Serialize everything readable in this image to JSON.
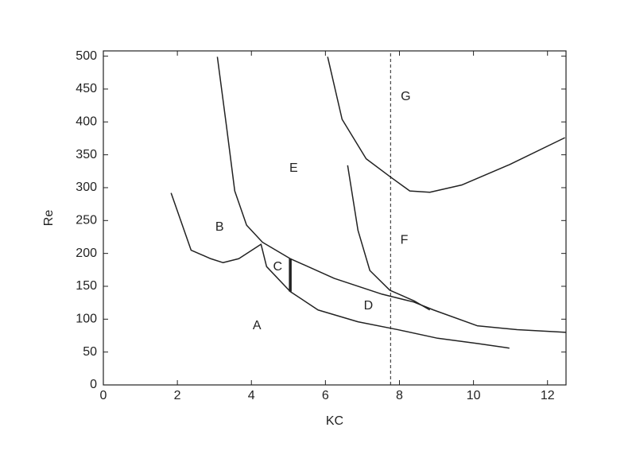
{
  "chart_data": {
    "type": "line",
    "x_label": "KC",
    "y_label": "Re",
    "xlim": [
      0,
      12.5
    ],
    "ylim": [
      0,
      508
    ],
    "xticks": [
      0,
      2,
      4,
      6,
      8,
      10,
      12
    ],
    "yticks": [
      0,
      50,
      100,
      150,
      200,
      250,
      300,
      350,
      400,
      450,
      500
    ],
    "series": [
      {
        "color": "#222222",
        "line_width": 1.5,
        "x": [
          1.83,
          2.37,
          2.9,
          3.23,
          3.66,
          4.26,
          4.41,
          5.05,
          5.8,
          6.88,
          7.96,
          9.03,
          10.1,
          10.97
        ],
        "values": [
          292,
          205,
          192,
          186,
          192,
          214,
          180,
          142,
          114,
          96,
          84,
          71,
          63,
          56
        ]
      },
      {
        "color": "#222222",
        "line_width": 1.5,
        "x": [
          3.08,
          3.33,
          3.55,
          3.87,
          4.3,
          5.05,
          6.24,
          7.53,
          8.39,
          8.92,
          10.1,
          11.18,
          12.5
        ],
        "values": [
          499,
          392,
          295,
          243,
          217,
          192,
          162,
          138,
          126,
          114,
          90,
          84,
          80
        ]
      },
      {
        "color": "#222222",
        "line_width": 3.5,
        "x": [
          5.05,
          5.05
        ],
        "values": [
          142,
          192
        ]
      },
      {
        "color": "#222222",
        "line_width": 1.5,
        "x": [
          6.6,
          6.88,
          7.2,
          7.74,
          8.39,
          8.82
        ],
        "values": [
          334,
          235,
          174,
          144,
          128,
          114
        ]
      },
      {
        "color": "#222222",
        "line_width": 1.5,
        "x": [
          6.06,
          6.45,
          7.1,
          7.74,
          8.28,
          8.82,
          9.68,
          10.97,
          12.47
        ],
        "values": [
          499,
          404,
          344,
          317,
          295,
          293,
          304,
          335,
          376
        ]
      },
      {
        "color": "#222222",
        "line_width": 1,
        "dashed": true,
        "x": [
          7.76,
          7.76
        ],
        "values": [
          0,
          508
        ]
      }
    ],
    "annotations": [
      {
        "text": "G",
        "x": 8.17,
        "y": 438
      },
      {
        "text": "E",
        "x": 5.14,
        "y": 329
      },
      {
        "text": "B",
        "x": 3.14,
        "y": 240
      },
      {
        "text": "F",
        "x": 8.13,
        "y": 220
      },
      {
        "text": "C",
        "x": 4.71,
        "y": 179
      },
      {
        "text": "D",
        "x": 7.16,
        "y": 120
      },
      {
        "text": "A",
        "x": 4.15,
        "y": 90
      }
    ]
  }
}
